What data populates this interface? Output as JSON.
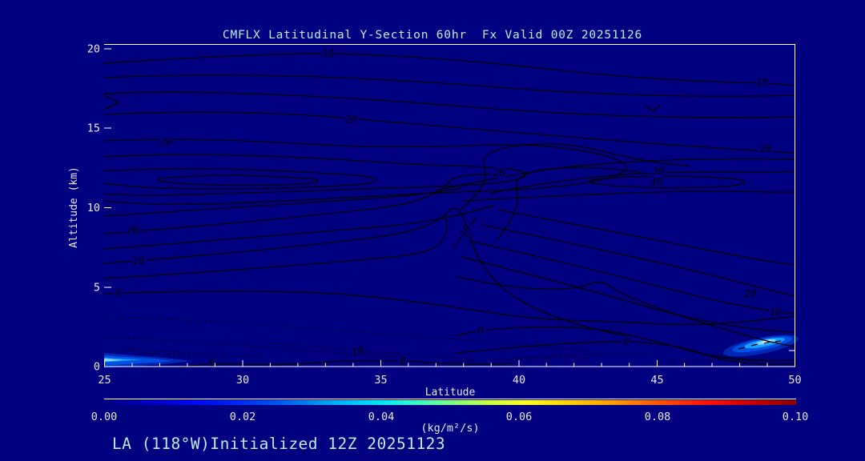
{
  "title": "CMFLX Latitudinal Y-Section 60hr  Fx Valid 00Z 20251126",
  "footer": "LA (118°W)Initialized 12Z 20251123",
  "axes": {
    "x": {
      "label": "Latitude",
      "ticks": [
        "25",
        "30",
        "35",
        "40",
        "45",
        "50"
      ]
    },
    "y": {
      "label": "Altitude (km)",
      "ticks": [
        "0",
        "5",
        "10",
        "15",
        "20"
      ]
    }
  },
  "colorbar": {
    "units": "(kg/m²/s)",
    "ticks": [
      "0.00",
      "0.02",
      "0.04",
      "0.06",
      "0.08",
      "0.10"
    ],
    "gradient": [
      "#000080 0%",
      "#0000cc 8%",
      "#0011ff 16%",
      "#0055ff 25%",
      "#00aaff 33%",
      "#00e8ff 40%",
      "#44ffbb 46%",
      "#88ff77 51%",
      "#ccff44 56%",
      "#ffff22 61%",
      "#ffcc00 68%",
      "#ff9900 74%",
      "#ff5500 80%",
      "#ff1100 87%",
      "#cc0000 93%",
      "#870000 100%"
    ]
  },
  "colors": {
    "background": "#000080",
    "contour_line": "#000006",
    "frame": "#ffffff",
    "title_text": "#b6eeee",
    "tick_text": "#e8e8e8",
    "shaded_core": "#e8ffff"
  },
  "contour_labels": [
    {
      "text": "10"
    },
    {
      "text": "10"
    },
    {
      "text": "20"
    },
    {
      "text": "20"
    },
    {
      "text": "30"
    },
    {
      "text": "20"
    },
    {
      "text": "10"
    },
    {
      "text": "0"
    },
    {
      "text": "20"
    },
    {
      "text": "30"
    },
    {
      "text": "40"
    },
    {
      "text": "20"
    },
    {
      "text": "10"
    },
    {
      "text": "0"
    },
    {
      "text": "0"
    },
    {
      "text": "0"
    },
    {
      "text": "0"
    },
    {
      "text": "-10"
    },
    {
      "text": "10"
    }
  ],
  "chart_data": {
    "type": "contour",
    "title": "CMFLX Latitudinal Y-Section 60hr  Fx Valid 00Z 20251126",
    "field": "CMFLX",
    "section": "LA (118°W)",
    "forecast_hour": "60hr",
    "valid": "00Z 20251126",
    "initialized": "12Z 20251123",
    "xlabel": "Latitude",
    "xlim": [
      25,
      50
    ],
    "xticks": [
      25,
      30,
      35,
      40,
      45,
      50
    ],
    "x_minor_tick_step": 1,
    "ylabel": "Altitude (km)",
    "ylim": [
      0,
      20
    ],
    "yticks": [
      0,
      5,
      10,
      15,
      20
    ],
    "grid": false,
    "line_contour_levels_labeled": [
      -10,
      0,
      10,
      20,
      30,
      40
    ],
    "negative_contour_style": "dotted",
    "shading_units": "kg/m²/s",
    "shading_range": [
      0.0,
      0.1
    ],
    "shading_ticks": [
      0.0,
      0.02,
      0.04,
      0.06,
      0.08,
      0.1
    ],
    "colorbar_position": "bottom",
    "shaded_maxima": [
      {
        "latitude": [
          25,
          27.5
        ],
        "altitude_km": [
          0,
          0.8
        ],
        "approx_peak_kg_m2_s": 0.03
      },
      {
        "latitude": [
          46.5,
          50
        ],
        "altitude_km": [
          0.3,
          2.0
        ],
        "approx_peak_kg_m2_s": 0.05
      }
    ]
  }
}
